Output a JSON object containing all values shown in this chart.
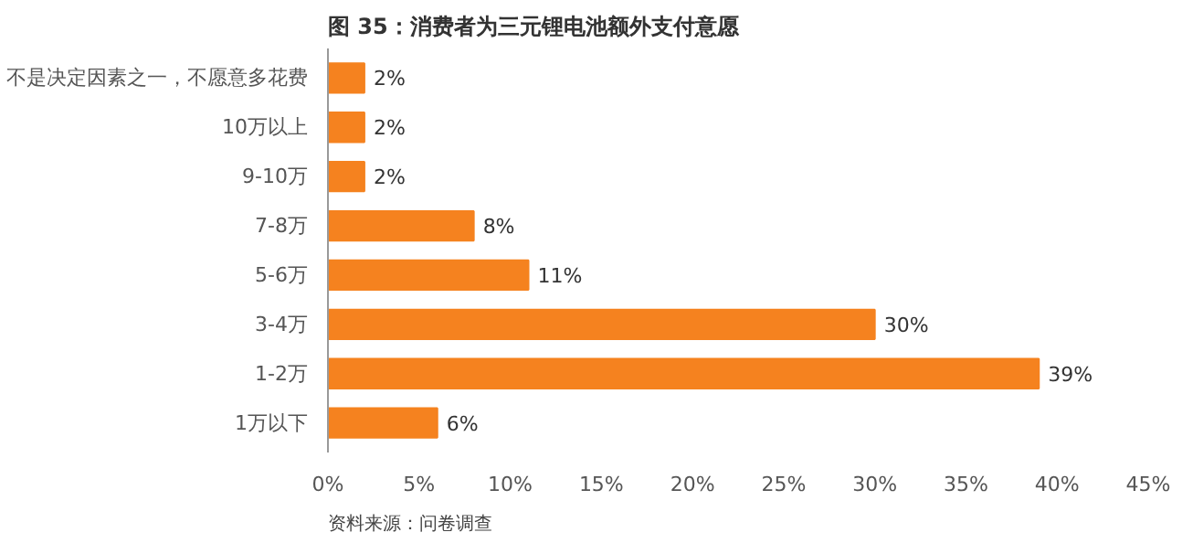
{
  "chart_data": {
    "type": "bar",
    "orientation": "horizontal",
    "title": "图 35：消费者为三元锂电池额外支付意愿",
    "categories": [
      "不是决定因素之一，不愿意多花费",
      "10万以上",
      "9-10万",
      "7-8万",
      "5-6万",
      "3-4万",
      "1-2万",
      "1万以下"
    ],
    "values": [
      2,
      2,
      2,
      8,
      11,
      30,
      39,
      6
    ],
    "value_labels": [
      "2%",
      "2%",
      "2%",
      "8%",
      "11%",
      "30%",
      "39%",
      "6%"
    ],
    "color": "#f5821f",
    "xlim": [
      0,
      45
    ],
    "xticks": [
      {
        "value": 0,
        "label": "0%"
      },
      {
        "value": 5,
        "label": "5%"
      },
      {
        "value": 10,
        "label": "10%"
      },
      {
        "value": 15,
        "label": "15%"
      },
      {
        "value": 20,
        "label": "20%"
      },
      {
        "value": 25,
        "label": "25%"
      },
      {
        "value": 30,
        "label": "30%"
      },
      {
        "value": 35,
        "label": "35%"
      },
      {
        "value": 40,
        "label": "40%"
      },
      {
        "value": 45,
        "label": "45%"
      }
    ],
    "grid": false,
    "annotations": [
      "资料来源：问卷调查"
    ]
  }
}
